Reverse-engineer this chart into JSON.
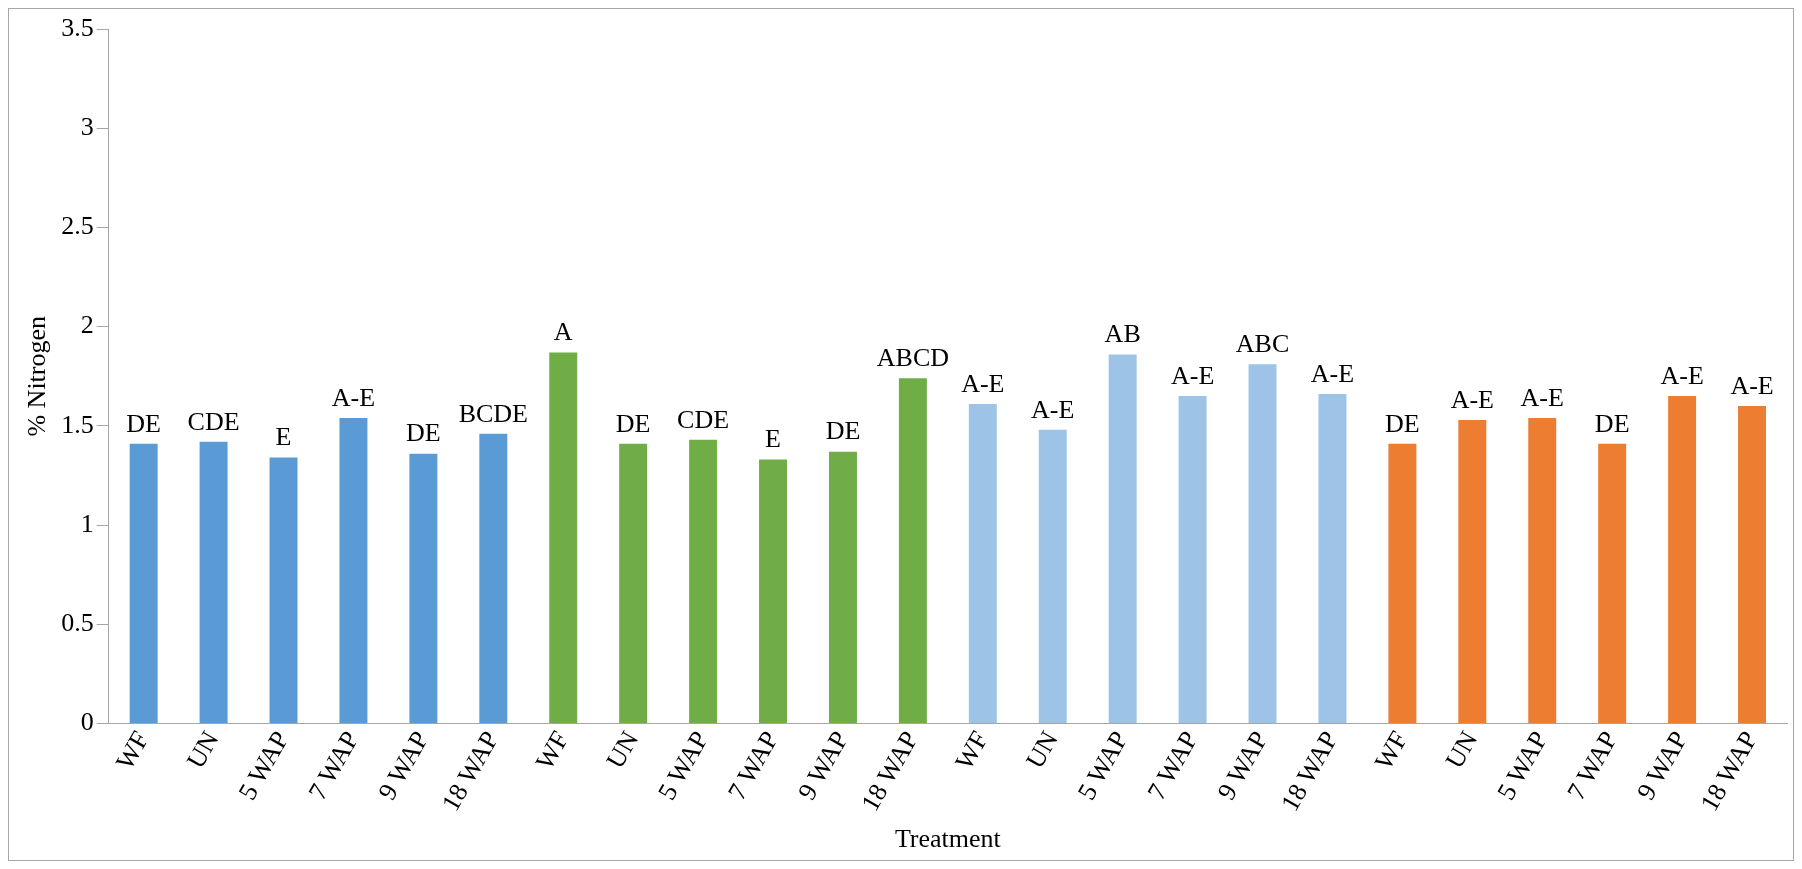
{
  "chart_data": {
    "type": "bar",
    "xlabel": "Treatment",
    "ylabel": "% Nitrogen",
    "categories": [
      "WF",
      "UN",
      "5 WAP",
      "7 WAP",
      "9 WAP",
      "18 WAP",
      "WF",
      "UN",
      "5 WAP",
      "7 WAP",
      "9 WAP",
      "18 WAP",
      "WF",
      "UN",
      "5 WAP",
      "7 WAP",
      "9 WAP",
      "18 WAP",
      "WF",
      "UN",
      "5 WAP",
      "7 WAP",
      "9 WAP",
      "18 WAP"
    ],
    "series": [
      {
        "values": [
          1.41,
          1.42,
          1.34,
          1.54,
          1.36,
          1.46,
          1.87,
          1.41,
          1.43,
          1.33,
          1.37,
          1.74,
          1.61,
          1.48,
          1.86,
          1.65,
          1.81,
          1.66,
          1.41,
          1.53,
          1.54,
          1.41,
          1.65,
          1.6
        ],
        "colors": [
          "#5b9bd5",
          "#5b9bd5",
          "#5b9bd5",
          "#5b9bd5",
          "#5b9bd5",
          "#5b9bd5",
          "#70ad47",
          "#70ad47",
          "#70ad47",
          "#70ad47",
          "#70ad47",
          "#70ad47",
          "#9dc3e6",
          "#9dc3e6",
          "#9dc3e6",
          "#9dc3e6",
          "#9dc3e6",
          "#9dc3e6",
          "#ed7d31",
          "#ed7d31",
          "#ed7d31",
          "#ed7d31",
          "#ed7d31",
          "#ed7d31"
        ],
        "value_labels": [
          "DE",
          "CDE",
          "E",
          "A-E",
          "DE",
          "BCDE",
          "A",
          "DE",
          "CDE",
          "E",
          "DE",
          "ABCD",
          "A-E",
          "A-E",
          "AB",
          "A-E",
          "ABC",
          "A-E",
          "DE",
          "A-E",
          "A-E",
          "DE",
          "A-E",
          "A-E"
        ]
      }
    ],
    "ylim": [
      0,
      3.5
    ],
    "yticks": [
      0,
      0.5,
      1,
      1.5,
      2,
      2.5,
      3,
      3.5
    ],
    "grid": false,
    "legend": false
  }
}
